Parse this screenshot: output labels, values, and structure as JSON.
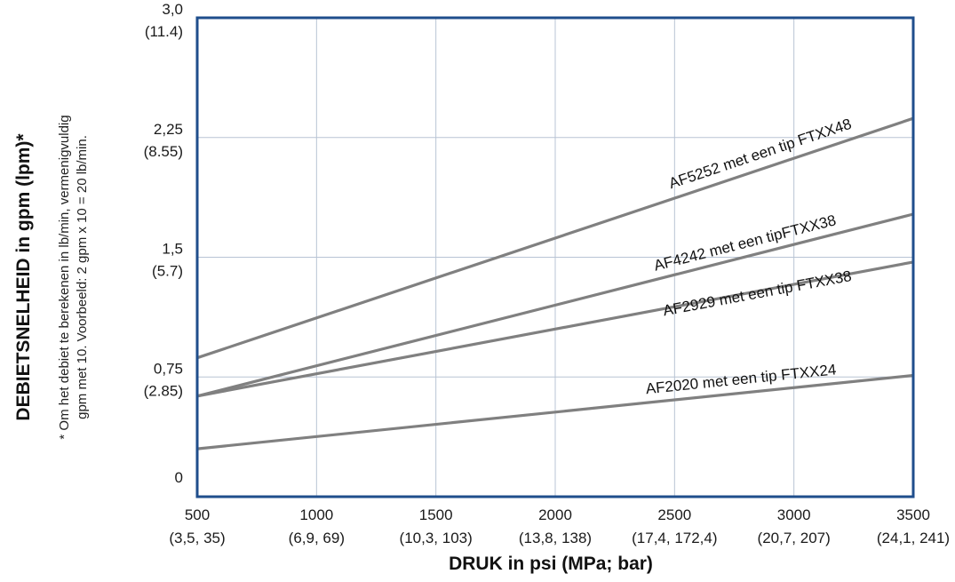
{
  "chart_data": {
    "type": "line",
    "title": "",
    "xlabel": "DRUK in psi (MPa; bar)",
    "ylabel": "DEBIETSNELHEID in gpm (lpm)*",
    "footnote_line1": "* Om het debiet te berekenen in lb/min, vermenigvuldig",
    "footnote_line2": "gpm met 10. Voorbeeld: 2 gpm x 10 = 20 lb/min.",
    "xlim": [
      500,
      3500
    ],
    "ylim": [
      0,
      3.0
    ],
    "grid": true,
    "x_ticks": [
      {
        "value": 500,
        "label": "500",
        "sub": "(3,5, 35)"
      },
      {
        "value": 1000,
        "label": "1000",
        "sub": "(6,9, 69)"
      },
      {
        "value": 1500,
        "label": "1500",
        "sub": "(10,3, 103)"
      },
      {
        "value": 2000,
        "label": "2000",
        "sub": "(13,8, 138)"
      },
      {
        "value": 2500,
        "label": "2500",
        "sub": "(17,4, 172,4)"
      },
      {
        "value": 3000,
        "label": "3000",
        "sub": "(20,7, 207)"
      },
      {
        "value": 3500,
        "label": "3500",
        "sub": "(24,1, 241)"
      }
    ],
    "y_ticks": [
      {
        "value": 0,
        "label": "0",
        "sub": ""
      },
      {
        "value": 0.75,
        "label": "0,75",
        "sub": "(2.85)"
      },
      {
        "value": 1.5,
        "label": "1,5",
        "sub": "(5.7)"
      },
      {
        "value": 2.25,
        "label": "2,25",
        "sub": "(8.55)"
      },
      {
        "value": 3.0,
        "label": "3,0",
        "sub": "(11.4)"
      }
    ],
    "series": [
      {
        "name": "AF5252 met een tip FTXX48",
        "x": [
          500,
          3500
        ],
        "y": [
          0.87,
          2.37
        ]
      },
      {
        "name": "AF4242 met een tipFTXX38",
        "x": [
          500,
          3500
        ],
        "y": [
          0.63,
          1.77
        ]
      },
      {
        "name": "AF2929 met een tip FTXX38",
        "x": [
          500,
          3500
        ],
        "y": [
          0.63,
          1.47
        ]
      },
      {
        "name": "AF2020 met een tip FTXX24",
        "x": [
          500,
          3500
        ],
        "y": [
          0.3,
          0.76
        ]
      }
    ],
    "colors": {
      "frame": "#1f4e8c",
      "grid": "#b8c4d4",
      "line": "#808080"
    }
  }
}
